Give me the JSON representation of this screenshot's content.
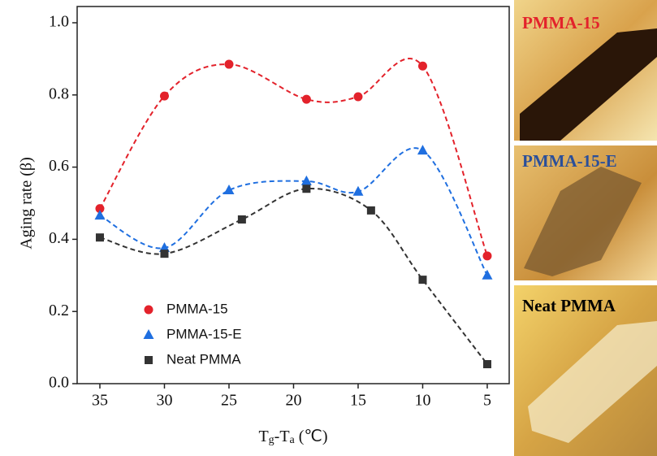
{
  "chart_data": {
    "type": "scatter",
    "x_label": [
      {
        "text": "T"
      },
      {
        "text": "g",
        "sub": true
      },
      {
        "text": "-T"
      },
      {
        "text": "a",
        "sub": true
      },
      {
        "text": " (℃)"
      }
    ],
    "y_label": "Aging rate (β)",
    "xlim": [
      36.76,
      3.3
    ],
    "ylim": [
      0,
      1
    ],
    "xticks": [
      35,
      30,
      25,
      20,
      15,
      10,
      5
    ],
    "yticks": [
      {
        "value": 0,
        "label": "0.0"
      },
      0.2,
      0.4,
      0.6,
      0.8,
      {
        "value": 1,
        "label": "1.0"
      }
    ],
    "legend": "lower left",
    "series": [
      {
        "name": "PMMA-15",
        "color": "#e3222b",
        "marker": "circle",
        "x": [
          35,
          30,
          25,
          19,
          15,
          10,
          5
        ],
        "values": [
          0.485,
          0.797,
          0.885,
          0.788,
          0.795,
          0.88,
          0.354
        ]
      },
      {
        "name": "PMMA-15-E",
        "color": "#1f6fe0",
        "marker": "triangle",
        "x": [
          35,
          30,
          25,
          19,
          15,
          10,
          5
        ],
        "values": [
          0.466,
          0.376,
          0.536,
          0.561,
          0.532,
          0.646,
          0.3
        ]
      },
      {
        "name": "Neat PMMA",
        "color": "#333333",
        "marker": "square",
        "x": [
          35,
          30,
          24,
          19,
          14,
          10,
          5
        ],
        "values": [
          0.405,
          0.36,
          0.455,
          0.54,
          0.48,
          0.288,
          0.054
        ]
      }
    ]
  },
  "photos": [
    {
      "label": "PMMA-15",
      "color": "#e3222b"
    },
    {
      "label": "PMMA-15-E",
      "color": "#2a4f9a"
    },
    {
      "label": "Neat PMMA",
      "color": "#000000"
    }
  ]
}
